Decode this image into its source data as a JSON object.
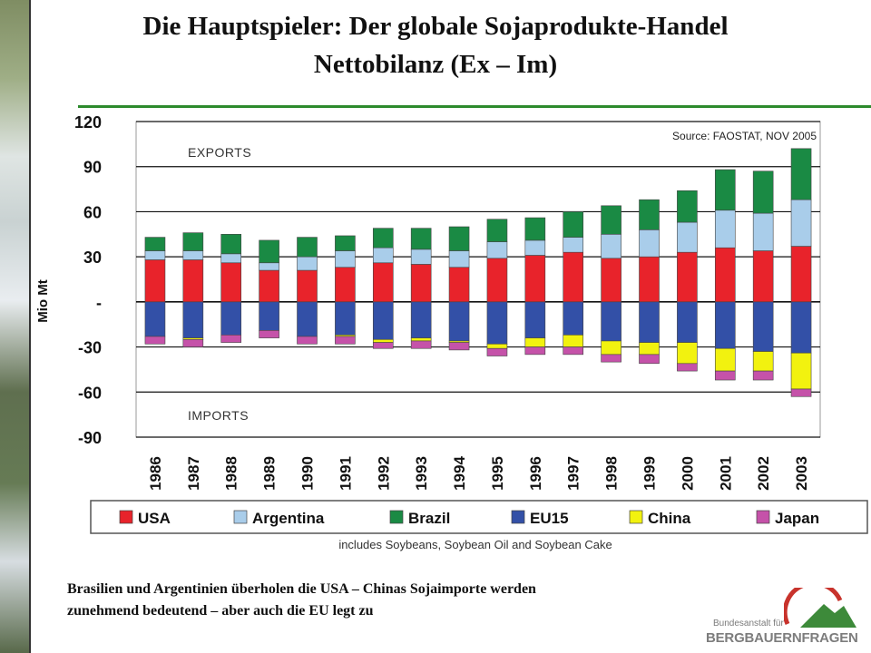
{
  "slide": {
    "title_line1": "Die Hauptspieler: Der globale Sojaprodukte-Handel",
    "title_line2": "Nettobilanz (Ex – Im)",
    "caption_line1": "Brasilien und Argentinien überholen die USA – Chinas Sojaimporte werden",
    "caption_line2": "zunehmend bedeutend – aber auch die EU legt zu"
  },
  "logo": {
    "line1": "Bundesanstalt für",
    "line2": "BERGBAUERNFRAGEN",
    "accent_red": "#c8332c",
    "accent_green": "#3d8a3a"
  },
  "chart_data": {
    "type": "bar",
    "stacked": true,
    "ylabel": "Mio Mt",
    "ylim": [
      -90,
      120
    ],
    "yticks": [
      120,
      90,
      60,
      30,
      0,
      -30,
      -60,
      -90
    ],
    "ytick_labels": [
      "120",
      "90",
      "60",
      "30",
      "-",
      "-30",
      "-60",
      "-90"
    ],
    "grid": true,
    "source_note": "Source: FAOSTAT, NOV 2005",
    "annotations": {
      "top": "EXPORTS",
      "bottom": "IMPORTS"
    },
    "footnote": "includes Soybeans, Soybean Oil and Soybean Cake",
    "legend_position": "bottom",
    "categories": [
      "1986",
      "1987",
      "1988",
      "1989",
      "1990",
      "1991",
      "1992",
      "1993",
      "1994",
      "1995",
      "1996",
      "1997",
      "1998",
      "1999",
      "2000",
      "2001",
      "2002",
      "2003"
    ],
    "series": [
      {
        "name": "USA",
        "color": "#e8232b",
        "values": [
          28,
          28,
          26,
          21,
          21,
          23,
          26,
          25,
          23,
          29,
          31,
          33,
          29,
          30,
          33,
          36,
          34,
          37
        ]
      },
      {
        "name": "Argentina",
        "color": "#a9cdea",
        "values": [
          6,
          6,
          6,
          5,
          9,
          11,
          10,
          10,
          11,
          11,
          10,
          10,
          16,
          18,
          20,
          25,
          25,
          31
        ]
      },
      {
        "name": "Brazil",
        "color": "#1a8a44",
        "values": [
          9,
          12,
          13,
          15,
          13,
          10,
          13,
          14,
          16,
          15,
          15,
          17,
          19,
          20,
          21,
          27,
          28,
          34
        ]
      },
      {
        "name": "EU15",
        "color": "#3350a7",
        "values": [
          -23,
          -24,
          -22,
          -19,
          -23,
          -22,
          -25,
          -24,
          -26,
          -28,
          -24,
          -22,
          -26,
          -27,
          -27,
          -31,
          -33,
          -34
        ]
      },
      {
        "name": "China",
        "color": "#f2f20f",
        "values": [
          0,
          -1,
          0,
          0,
          0,
          -1,
          -2,
          -2,
          -1,
          -3,
          -6,
          -8,
          -9,
          -8,
          -14,
          -15,
          -13,
          -24
        ]
      },
      {
        "name": "Japan",
        "color": "#c552a9",
        "values": [
          -5,
          -5,
          -5,
          -5,
          -5,
          -5,
          -4,
          -5,
          -5,
          -5,
          -5,
          -5,
          -5,
          -6,
          -5,
          -6,
          -6,
          -5
        ]
      }
    ]
  }
}
